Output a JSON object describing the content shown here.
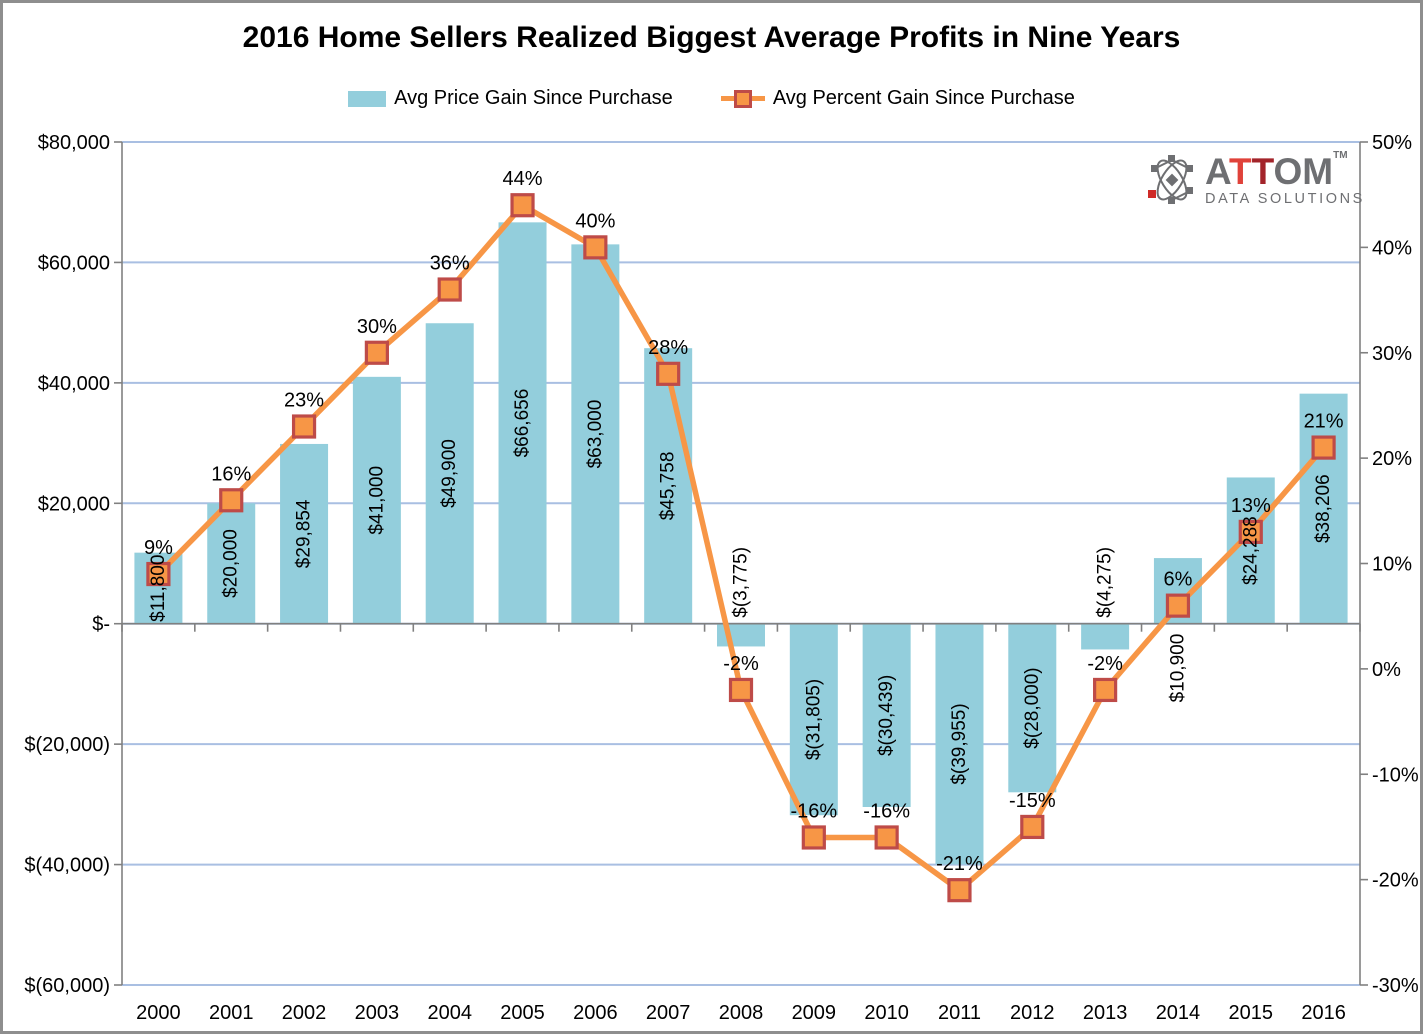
{
  "title": "2016 Home Sellers Realized Biggest Average Profits in Nine Years",
  "legend": {
    "bar_label": "Avg Price Gain Since Purchase",
    "line_label": "Avg Percent Gain Since Purchase"
  },
  "logo": {
    "part_a": "A",
    "part_t1": "T",
    "part_t2": "T",
    "part_om": "OM",
    "trademark": "TM",
    "subtitle": "DATA SOLUTIONS"
  },
  "chart_data": {
    "type": "bar",
    "subtype": "combo bar + line, dual value axes",
    "title": "2016 Home Sellers Realized Biggest Average Profits in Nine Years",
    "categories": [
      "2000",
      "2001",
      "2002",
      "2003",
      "2004",
      "2005",
      "2006",
      "2007",
      "2008",
      "2009",
      "2010",
      "2011",
      "2012",
      "2013",
      "2014",
      "2015",
      "2016"
    ],
    "series": [
      {
        "name": "Avg Price Gain Since Purchase",
        "type": "bar",
        "axis": "left",
        "color": "#93cedc",
        "values": [
          11800,
          20000,
          29854,
          41000,
          49900,
          66656,
          63000,
          45758,
          -3775,
          -31805,
          -30439,
          -39955,
          -28000,
          -4275,
          10900,
          24288,
          38206
        ],
        "labels": [
          "$11,800",
          "$20,000",
          "$29,854",
          "$41,000",
          "$49,900",
          "$66,656",
          "$63,000",
          "$45,758",
          "$(3,775)",
          "$(31,805)",
          "$(30,439)",
          "$(39,955)",
          "$(28,000)",
          "$(4,275)",
          "$10,900",
          "$24,288",
          "$38,206"
        ],
        "label_placement": [
          "center",
          "center",
          "center",
          "center",
          "center",
          "center",
          "center",
          "center",
          "above_axis",
          "center",
          "center",
          "center",
          "center",
          "above_axis",
          "below_axis",
          "center",
          "center"
        ]
      },
      {
        "name": "Avg Percent Gain Since Purchase",
        "type": "line",
        "axis": "right",
        "color": "#f79646",
        "marker": "square",
        "marker_border_color": "#be4b48",
        "values": [
          9,
          16,
          23,
          30,
          36,
          44,
          40,
          28,
          -2,
          -16,
          -16,
          -21,
          -15,
          -2,
          6,
          13,
          21
        ],
        "labels": [
          "9%",
          "16%",
          "23%",
          "30%",
          "36%",
          "44%",
          "40%",
          "28%",
          "-2%",
          "-16%",
          "-16%",
          "-21%",
          "-15%",
          "-2%",
          "6%",
          "13%",
          "21%"
        ]
      }
    ],
    "left_axis": {
      "min": -60000,
      "max": 80000,
      "step": 20000,
      "tick_labels": [
        "$80,000",
        "$60,000",
        "$40,000",
        "$20,000",
        "$-",
        "$(20,000)",
        "$(40,000)",
        "$(60,000)"
      ]
    },
    "right_axis": {
      "min": -30,
      "max": 50,
      "step": 10,
      "tick_labels": [
        "50%",
        "40%",
        "30%",
        "20%",
        "10%",
        "0%",
        "-10%",
        "-20%",
        "-30%"
      ]
    },
    "grid": true,
    "gridline_color": "#a9bfe2",
    "axis_color": "#808080",
    "legend_position": "top-center"
  }
}
